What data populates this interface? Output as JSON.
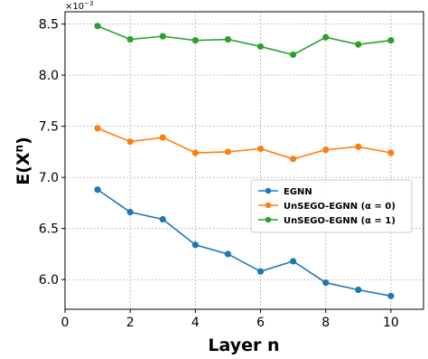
{
  "chart_data": {
    "type": "line",
    "xlabel": "Layer n",
    "ylabel_base": "E(X",
    "ylabel_sup": "n",
    "ylabel_close": ")",
    "y_scale_base": "×10",
    "y_scale_exp": "−3",
    "xlim": [
      0,
      11
    ],
    "ylim": [
      5.71,
      8.62
    ],
    "x_ticks": [
      0,
      2,
      4,
      6,
      8,
      10
    ],
    "y_ticks": [
      6.0,
      6.5,
      7.0,
      7.5,
      8.0,
      8.5
    ],
    "x_tick_labels": [
      "0",
      "2",
      "4",
      "6",
      "8",
      "10"
    ],
    "y_tick_labels": [
      "6.0",
      "6.5",
      "7.0",
      "7.5",
      "8.0",
      "8.5"
    ],
    "grid": true,
    "legend_position": "center-right",
    "x": [
      1,
      2,
      3,
      4,
      5,
      6,
      7,
      8,
      9,
      10
    ],
    "series": [
      {
        "name": "EGNN",
        "color": "#1f77b4",
        "values": [
          6.88,
          6.66,
          6.59,
          6.34,
          6.25,
          6.08,
          6.18,
          5.97,
          5.9,
          5.84
        ]
      },
      {
        "name": "UnSEGO-EGNN (α = 0)",
        "color": "#ff7f0e",
        "values": [
          7.48,
          7.35,
          7.39,
          7.24,
          7.25,
          7.28,
          7.18,
          7.27,
          7.3,
          7.24
        ]
      },
      {
        "name": "UnSEGO-EGNN (α = 1)",
        "color": "#2ca02c",
        "values": [
          8.48,
          8.35,
          8.38,
          8.34,
          8.35,
          8.28,
          8.2,
          8.37,
          8.3,
          8.34
        ]
      }
    ]
  }
}
